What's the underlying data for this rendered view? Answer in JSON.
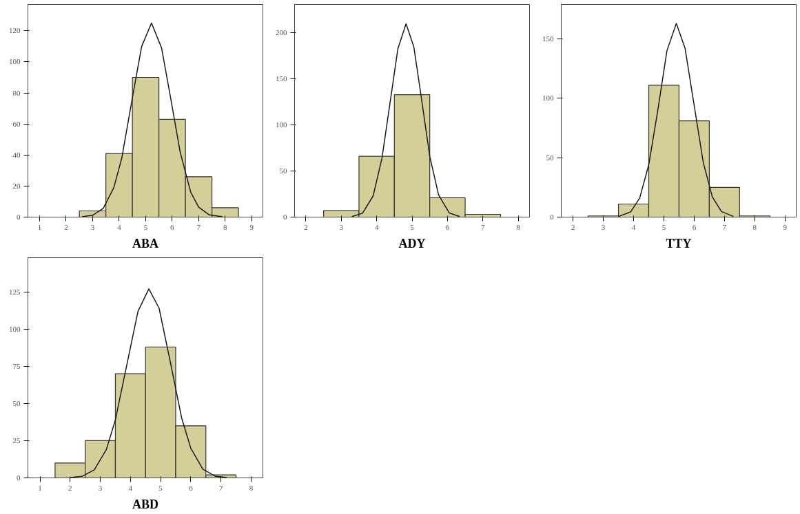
{
  "chart_data": [
    {
      "type": "histogram",
      "title": "ABA",
      "xlim": [
        0.56,
        9.42
      ],
      "ylim": [
        0,
        137
      ],
      "xticks": [
        1,
        2,
        3,
        4,
        5,
        6,
        7,
        8,
        9
      ],
      "yticks": [
        0,
        20,
        40,
        60,
        80,
        100,
        120
      ],
      "grid": false,
      "series": [
        {
          "color": "#d4cf98",
          "bins": [
            2.5,
            3.5,
            4.5,
            5.5,
            6.5,
            7.5,
            8.5
          ],
          "values": [
            4,
            41,
            90,
            63,
            26,
            6
          ]
        },
        {
          "type": "line",
          "color": "#1a1a1a",
          "x": [
            2.6,
            3.0,
            3.4,
            3.8,
            4.1,
            4.5,
            4.85,
            5.22,
            5.6,
            5.95,
            6.3,
            6.7,
            7.0,
            7.4,
            7.9
          ],
          "values": [
            0.2,
            1.2,
            5.6,
            19,
            38,
            77,
            110,
            125,
            109,
            76,
            42,
            16,
            6.4,
            1.4,
            0.2
          ]
        }
      ]
    },
    {
      "type": "histogram",
      "title": "ADY",
      "xlim": [
        1.68,
        8.32
      ],
      "ylim": [
        0,
        231
      ],
      "xticks": [
        2,
        3,
        4,
        5,
        6,
        7,
        8
      ],
      "yticks": [
        0,
        50,
        100,
        150,
        200
      ],
      "grid": false,
      "series": [
        {
          "color": "#d4cf98",
          "bins": [
            2.5,
            3.5,
            4.5,
            5.5,
            6.5,
            7.5
          ],
          "values": [
            7,
            66,
            133,
            21,
            3
          ]
        },
        {
          "type": "line",
          "color": "#1a1a1a",
          "x": [
            3.3,
            3.6,
            3.9,
            4.15,
            4.4,
            4.6,
            4.83,
            5.05,
            5.25,
            5.5,
            5.75,
            6.05,
            6.35
          ],
          "values": [
            0.5,
            4.2,
            23,
            64,
            130,
            183,
            210,
            185,
            133,
            66,
            24,
            4.5,
            0.5
          ]
        }
      ]
    },
    {
      "type": "histogram",
      "title": "TTY",
      "xlim": [
        1.61,
        9.37
      ],
      "ylim": [
        0,
        179
      ],
      "xticks": [
        2,
        3,
        4,
        5,
        6,
        7,
        8,
        9
      ],
      "yticks": [
        0,
        50,
        100,
        150
      ],
      "grid": false,
      "series": [
        {
          "color": "#d4cf98",
          "bins": [
            2.5,
            3.5,
            4.5,
            5.5,
            6.5,
            7.5,
            8.5
          ],
          "values": [
            1,
            11,
            111,
            81,
            25,
            1
          ]
        },
        {
          "type": "line",
          "color": "#1a1a1a",
          "x": [
            3.5,
            3.9,
            4.2,
            4.5,
            4.8,
            5.1,
            5.41,
            5.7,
            6.0,
            6.3,
            6.6,
            6.9,
            7.3
          ],
          "values": [
            0.5,
            4.3,
            16,
            44,
            90,
            140,
            163,
            142,
            94,
            46,
            17,
            4.7,
            0.5
          ]
        }
      ]
    },
    {
      "type": "histogram",
      "title": "ABD",
      "xlim": [
        0.6,
        8.39
      ],
      "ylim": [
        0,
        148
      ],
      "xticks": [
        1,
        2,
        3,
        4,
        5,
        6,
        7,
        8
      ],
      "yticks": [
        0,
        25,
        50,
        75,
        100,
        125
      ],
      "grid": false,
      "series": [
        {
          "color": "#d4cf98",
          "bins": [
            1.5,
            2.5,
            3.5,
            4.5,
            5.5,
            6.5,
            7.5
          ],
          "values": [
            10,
            25,
            70,
            88,
            35,
            2
          ]
        },
        {
          "type": "line",
          "color": "#1a1a1a",
          "x": [
            2.0,
            2.4,
            2.8,
            3.2,
            3.5,
            3.9,
            4.25,
            4.61,
            4.95,
            5.3,
            5.7,
            6.0,
            6.4,
            6.8,
            7.2
          ],
          "values": [
            0.2,
            1.1,
            5.4,
            19,
            39,
            78,
            112,
            127,
            114,
            80,
            40,
            20,
            5.8,
            1.2,
            0.2
          ]
        }
      ]
    }
  ]
}
